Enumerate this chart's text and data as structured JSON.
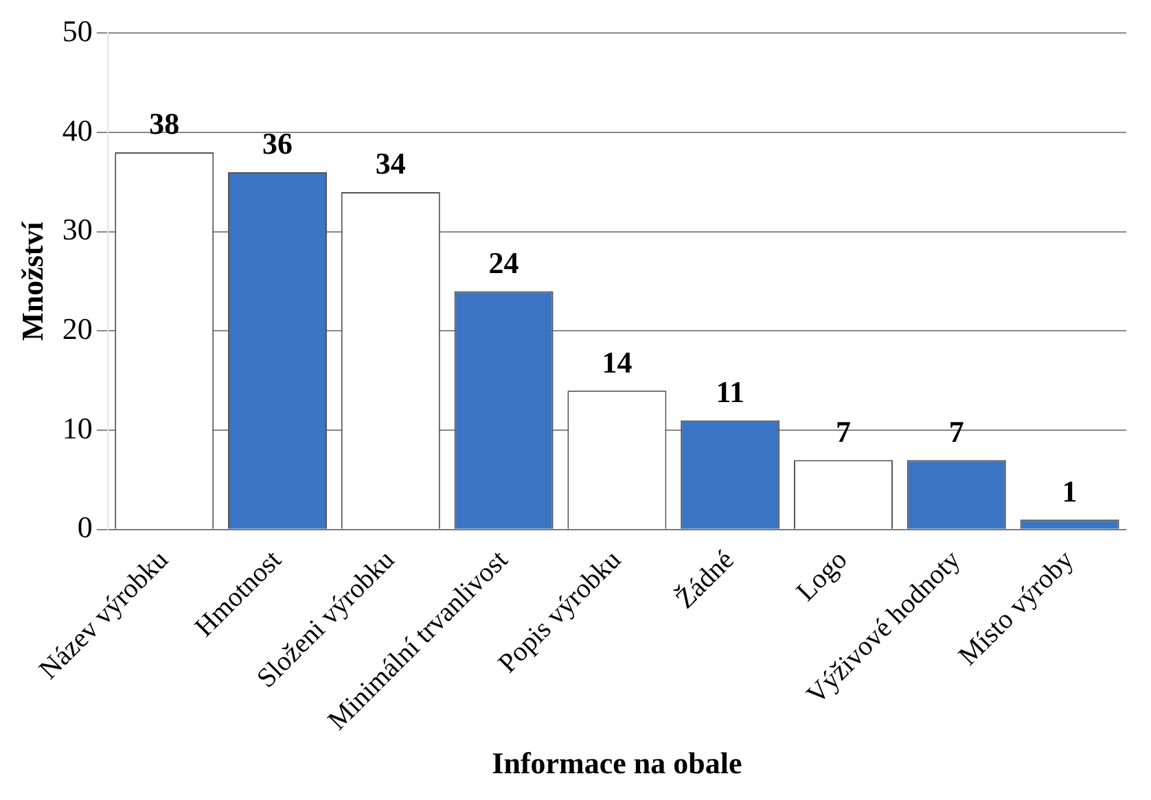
{
  "chart_data": {
    "type": "bar",
    "xlabel": "Informace na obale",
    "ylabel": "Množství",
    "categories": [
      "Název výrobku",
      "Hmotnost",
      "Složeni výrobku",
      "Minimální trvanlivost",
      "Popis výrobku",
      "Žádné",
      "Logo",
      "Výživové hodnoty",
      "Místo výroby"
    ],
    "values": [
      38,
      36,
      34,
      24,
      14,
      11,
      7,
      7,
      1
    ],
    "colors": [
      "#ffffff",
      "#3b74c2",
      "#ffffff",
      "#3b74c2",
      "#ffffff",
      "#3b74c2",
      "#ffffff",
      "#3b74c2",
      "#3b74c2"
    ],
    "ylim": [
      0,
      50
    ],
    "yticks": [
      0,
      10,
      20,
      30,
      40,
      50
    ],
    "grid": "y",
    "data_labels": true,
    "legend": false
  }
}
